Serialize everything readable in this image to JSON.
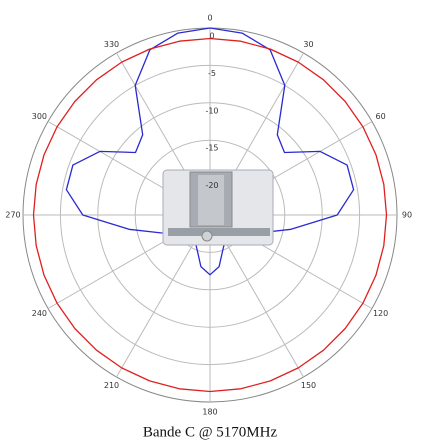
{
  "chart_data": {
    "type": "polar",
    "title": "Bande C @ 5170MHz",
    "rlim": [
      -25,
      0
    ],
    "rticks": [
      0,
      -5,
      -10,
      -15,
      -20
    ],
    "thetaticks": [
      0,
      30,
      60,
      90,
      120,
      150,
      180,
      210,
      240,
      270,
      300,
      330
    ],
    "theta": [
      0,
      10,
      20,
      30,
      40,
      50,
      60,
      70,
      80,
      90,
      100,
      110,
      120,
      130,
      140,
      150,
      160,
      170,
      180,
      190,
      200,
      210,
      220,
      230,
      240,
      250,
      260,
      270,
      280,
      290,
      300,
      310,
      320,
      330,
      340,
      350
    ],
    "series": [
      {
        "color": "#2a2ad0",
        "values": [
          0,
          -0.3,
          -1.5,
          -5,
          -11,
          -12,
          -8,
          -5.5,
          -5.5,
          -8,
          -14,
          -18,
          -20,
          -21,
          -21,
          -21,
          -20,
          -18,
          -17,
          -18,
          -20,
          -21,
          -21,
          -21,
          -20,
          -18,
          -14,
          -8,
          -5.5,
          -5.5,
          -8,
          -12,
          -11,
          -5,
          -1.5,
          -0.3
        ]
      },
      {
        "color": "#e02020",
        "values": [
          -1.4,
          -1.4,
          -1.4,
          -1.4,
          -1.4,
          -1.4,
          -1.4,
          -1.4,
          -1.4,
          -1.4,
          -1.4,
          -1.4,
          -1.4,
          -1.4,
          -1.4,
          -1.4,
          -1.4,
          -1.4,
          -1.4,
          -1.4,
          -1.4,
          -1.4,
          -1.4,
          -1.4,
          -1.4,
          -1.4,
          -1.4,
          -1.4,
          -1.4,
          -1.4,
          -1.4,
          -1.4,
          -1.4,
          -1.4,
          -1.4,
          -1.4
        ]
      }
    ]
  }
}
